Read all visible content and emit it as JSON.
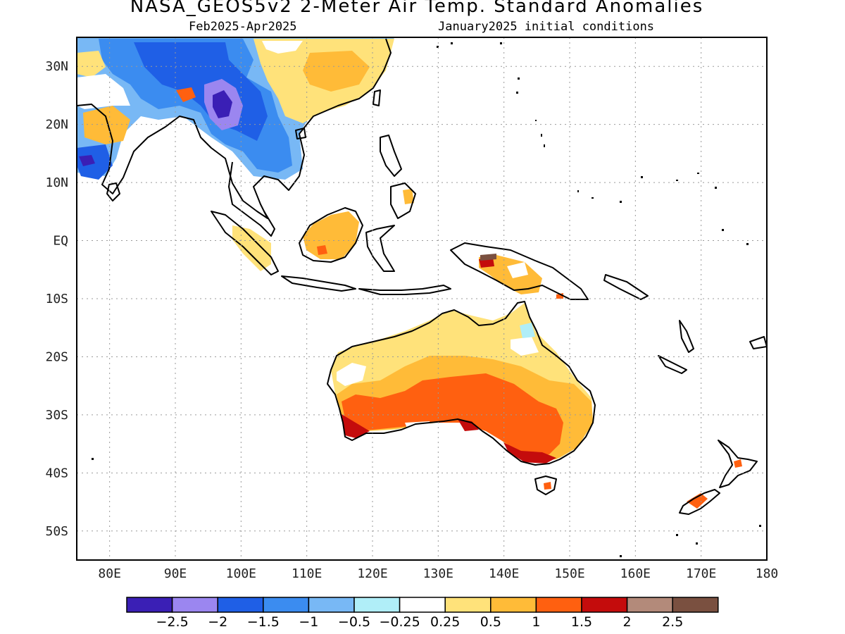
{
  "header": {
    "title": "NASA_GEOS5v2 2-Meter Air Temp. Standard Anomalies",
    "period": "Feb2025-Apr2025",
    "init": "January2025 initial conditions"
  },
  "map": {
    "lon_range": [
      75,
      180
    ],
    "lat_range": [
      -55,
      35
    ],
    "lon_ticks": [
      {
        "value": 80,
        "label": "80E"
      },
      {
        "value": 90,
        "label": "90E"
      },
      {
        "value": 100,
        "label": "100E"
      },
      {
        "value": 110,
        "label": "110E"
      },
      {
        "value": 120,
        "label": "120E"
      },
      {
        "value": 130,
        "label": "130E"
      },
      {
        "value": 140,
        "label": "140E"
      },
      {
        "value": 150,
        "label": "150E"
      },
      {
        "value": 160,
        "label": "160E"
      },
      {
        "value": 170,
        "label": "170E"
      },
      {
        "value": 180,
        "label": "180"
      }
    ],
    "lat_ticks": [
      {
        "value": 30,
        "label": "30N"
      },
      {
        "value": 20,
        "label": "20N"
      },
      {
        "value": 10,
        "label": "10N"
      },
      {
        "value": 0,
        "label": "EQ"
      },
      {
        "value": -10,
        "label": "10S"
      },
      {
        "value": -20,
        "label": "20S"
      },
      {
        "value": -30,
        "label": "30S"
      },
      {
        "value": -40,
        "label": "40S"
      },
      {
        "value": -50,
        "label": "50S"
      }
    ],
    "gridlines": "dotted"
  },
  "colorbar": {
    "colors": [
      "#3a1fb5",
      "#9b86f0",
      "#1f5fe6",
      "#3b8cf0",
      "#78b8f5",
      "#b0eef8",
      "#ffffff",
      "#ffe27a",
      "#ffbb38",
      "#ff6010",
      "#c40c0c",
      "#b38a7a",
      "#7a5040"
    ],
    "labels": [
      "-2.5",
      "-2",
      "-1.5",
      "-1",
      "-0.5",
      "-0.25",
      "0.25",
      "0.5",
      "1",
      "1.5",
      "2",
      "2.5"
    ]
  }
}
